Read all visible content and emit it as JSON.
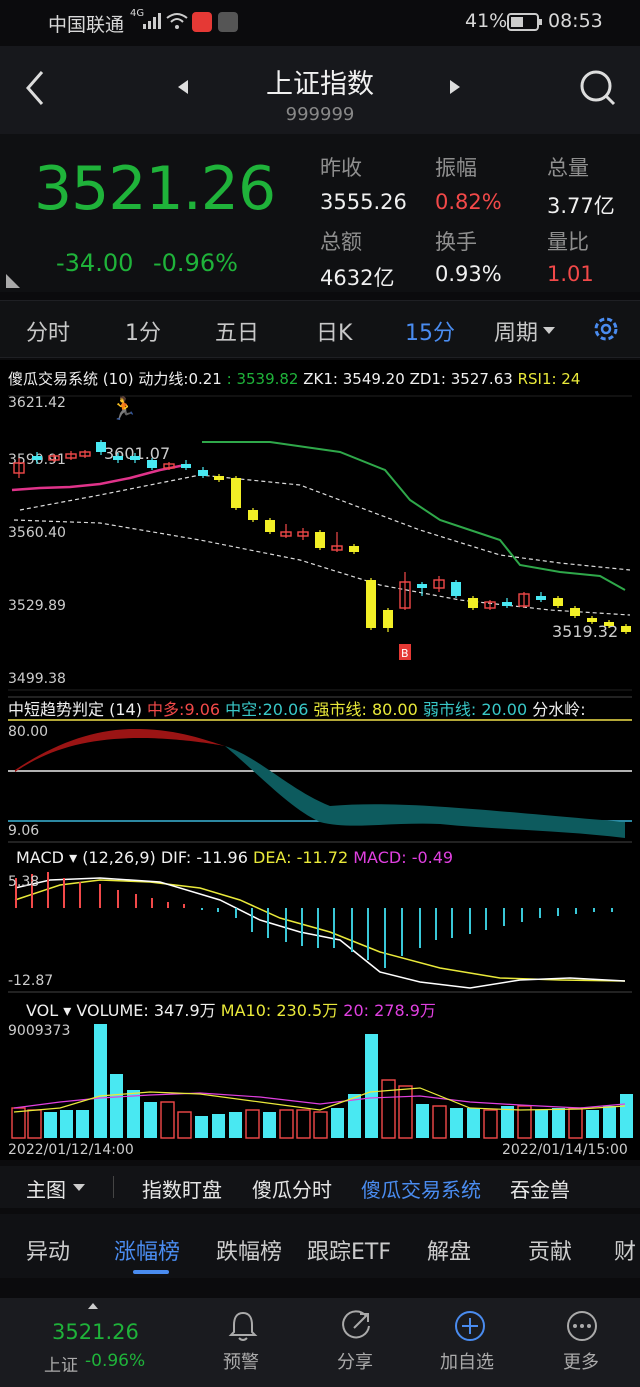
{
  "status": {
    "carrier": "中国联通",
    "net": "4G",
    "battery": "41%",
    "time": "08:53"
  },
  "header": {
    "title": "上证指数",
    "code": "999999"
  },
  "quote": {
    "price": "3521.26",
    "change": "-34.00",
    "pct": "-0.96%",
    "stats": [
      {
        "label": "昨收",
        "value": "3555.26"
      },
      {
        "label": "振幅",
        "value": "0.82%"
      },
      {
        "label": "总量",
        "value": "3.77亿"
      },
      {
        "label": "总额",
        "value": "4632亿"
      },
      {
        "label": "换手",
        "value": "0.93%"
      },
      {
        "label": "量比",
        "value": "1.01"
      }
    ]
  },
  "tabs": [
    "分时",
    "1分",
    "五日",
    "日K",
    "15分",
    "周期"
  ],
  "active_tab": "15分",
  "main_chart": {
    "indicator": "傻瓜交易系统",
    "param": "(10)",
    "dl_label": "动力线:",
    "dl_val": "0.21",
    "dl2": ": 3539.82",
    "zk1": "ZK1: 3549.20",
    "zd1": "ZD1: 3527.63",
    "rsi1": "RSI1: 24",
    "y_labels": [
      "3621.42",
      "3590.91",
      "3560.40",
      "3529.89",
      "3499.38"
    ],
    "hi_label": "3601.07",
    "lo_label": "3519.32"
  },
  "trend": {
    "name": "中短趋势判定",
    "param": "(14)",
    "zd": "中多:",
    "zd_val": "9.06",
    "zk": "中空:",
    "zk_val": "20.06",
    "qs": "强市线: 80.00",
    "rs": "弱市线: 20.00",
    "fsl": "分水岭:",
    "top": "80.00",
    "bottom": "9.06"
  },
  "macd": {
    "name": "MACD",
    "param": "(12,26,9)",
    "dif": "DIF: -11.96",
    "dea": "DEA: -11.72",
    "macd": "MACD: -0.49",
    "top": "5.38",
    "bottom": "-12.87"
  },
  "vol": {
    "name": "VOL",
    "volume": "VOLUME: 347.9万",
    "ma10": "MA10: 230.5万",
    "ma20": "20: 278.9万",
    "top": "9009373",
    "date_left": "2022/01/12/14:00",
    "date_right": "2022/01/14/15:00"
  },
  "bottombar": {
    "main": "主图",
    "items": [
      "指数盯盘",
      "傻瓜分时",
      "傻瓜交易系统",
      "吞金兽"
    ]
  },
  "rank": {
    "items": [
      "异动",
      "涨幅榜",
      "跌幅榜",
      "跟踪ETF",
      "解盘",
      "贡献",
      "财"
    ],
    "active": "涨幅榜"
  },
  "nav": {
    "price": "3521.26",
    "name": "上证",
    "pct": "-0.96%",
    "items": [
      "预警",
      "分享",
      "加自选",
      "更多"
    ]
  },
  "colors": {
    "up": "#f24949",
    "down": "#1fb33a",
    "accent": "#4a8cf0"
  }
}
